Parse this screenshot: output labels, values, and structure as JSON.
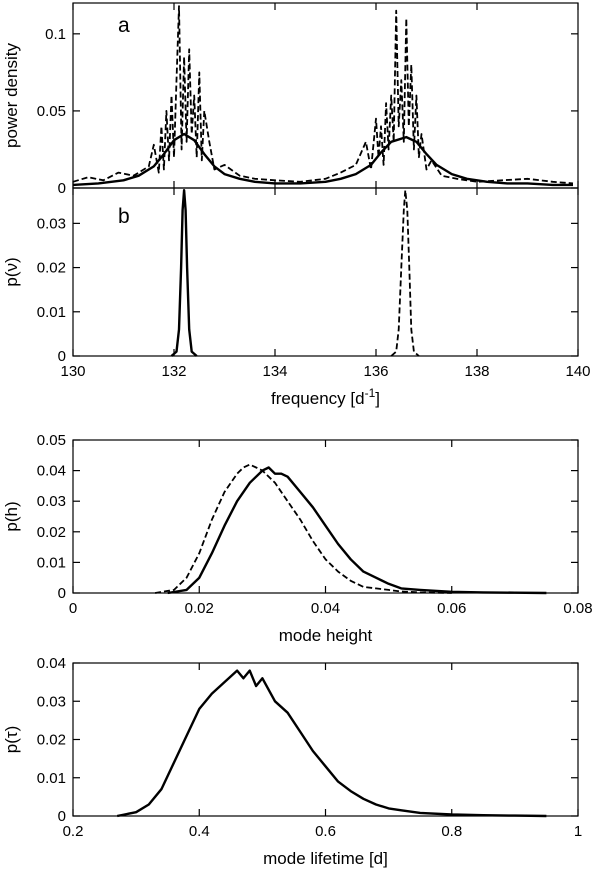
{
  "chart_data": [
    {
      "type": "line",
      "panel_label": "a",
      "xlabel": "",
      "ylabel": "power density",
      "xlim": [
        130,
        140
      ],
      "ylim": [
        0,
        0.12
      ],
      "yticks": [
        "0",
        "0.05",
        "0.1"
      ],
      "series": [
        {
          "style": "dashed",
          "x": [
            130.0,
            130.3,
            130.6,
            130.9,
            131.2,
            131.5,
            131.6,
            131.7,
            131.75,
            131.8,
            131.85,
            131.9,
            131.95,
            132.0,
            132.05,
            132.1,
            132.15,
            132.2,
            132.25,
            132.3,
            132.35,
            132.4,
            132.45,
            132.5,
            132.55,
            132.6,
            132.7,
            132.8,
            133.0,
            133.3,
            133.6,
            134.0,
            134.5,
            135.0,
            135.3,
            135.6,
            135.8,
            135.9,
            136.0,
            136.05,
            136.1,
            136.15,
            136.2,
            136.25,
            136.3,
            136.35,
            136.4,
            136.45,
            136.5,
            136.55,
            136.6,
            136.65,
            136.7,
            136.75,
            136.8,
            136.85,
            136.9,
            137.0,
            137.1,
            137.3,
            137.6,
            138.0,
            138.5,
            139.0,
            139.5,
            139.9
          ],
          "y": [
            0.004,
            0.007,
            0.005,
            0.01,
            0.008,
            0.014,
            0.028,
            0.01,
            0.04,
            0.012,
            0.05,
            0.018,
            0.06,
            0.02,
            0.07,
            0.118,
            0.025,
            0.085,
            0.03,
            0.09,
            0.035,
            0.06,
            0.02,
            0.075,
            0.018,
            0.05,
            0.03,
            0.012,
            0.015,
            0.008,
            0.006,
            0.005,
            0.004,
            0.006,
            0.01,
            0.015,
            0.03,
            0.012,
            0.045,
            0.02,
            0.04,
            0.015,
            0.055,
            0.025,
            0.06,
            0.03,
            0.115,
            0.04,
            0.07,
            0.03,
            0.11,
            0.04,
            0.08,
            0.025,
            0.06,
            0.02,
            0.035,
            0.012,
            0.018,
            0.008,
            0.006,
            0.004,
            0.005,
            0.006,
            0.004,
            0.003
          ]
        },
        {
          "style": "solid",
          "x": [
            130.0,
            130.5,
            131.0,
            131.3,
            131.6,
            131.8,
            132.0,
            132.2,
            132.4,
            132.6,
            132.8,
            133.0,
            133.3,
            133.6,
            134.0,
            134.5,
            135.0,
            135.3,
            135.6,
            135.9,
            136.1,
            136.3,
            136.6,
            136.8,
            137.0,
            137.2,
            137.5,
            137.8,
            138.2,
            138.6,
            139.0,
            139.5,
            139.9
          ],
          "y": [
            0.002,
            0.003,
            0.005,
            0.008,
            0.014,
            0.022,
            0.031,
            0.035,
            0.031,
            0.022,
            0.014,
            0.009,
            0.006,
            0.004,
            0.003,
            0.003,
            0.004,
            0.006,
            0.009,
            0.015,
            0.023,
            0.03,
            0.033,
            0.03,
            0.022,
            0.015,
            0.009,
            0.006,
            0.004,
            0.003,
            0.003,
            0.002,
            0.002
          ]
        }
      ]
    },
    {
      "type": "line",
      "panel_label": "b",
      "xlabel": "frequency [d-1]",
      "xlabel_main": "frequency [d",
      "xlabel_sup": "-1",
      "xlabel_end": "]",
      "ylabel": "p(ν)",
      "xlim": [
        130,
        140
      ],
      "ylim": [
        0,
        0.038
      ],
      "xticks": [
        "130",
        "132",
        "134",
        "136",
        "138",
        "140"
      ],
      "yticks": [
        "0",
        "0.01",
        "0.02",
        "0.03"
      ],
      "series": [
        {
          "style": "solid",
          "x": [
            131.95,
            132.05,
            132.1,
            132.14,
            132.17,
            132.2,
            132.23,
            132.26,
            132.3,
            132.35,
            132.45
          ],
          "y": [
            0,
            0.001,
            0.006,
            0.02,
            0.033,
            0.0375,
            0.033,
            0.02,
            0.006,
            0.001,
            0
          ]
        },
        {
          "style": "dashed",
          "x": [
            136.3,
            136.4,
            136.45,
            136.5,
            136.55,
            136.58,
            136.62,
            136.66,
            136.7,
            136.75,
            136.85
          ],
          "y": [
            0,
            0.001,
            0.006,
            0.02,
            0.033,
            0.0375,
            0.033,
            0.02,
            0.006,
            0.001,
            0
          ]
        }
      ]
    },
    {
      "type": "line",
      "xlabel": "mode height",
      "ylabel": "p(h)",
      "xlim": [
        0,
        0.08
      ],
      "ylim": [
        0,
        0.05
      ],
      "xticks": [
        "0",
        "0.02",
        "0.04",
        "0.06",
        "0.08"
      ],
      "yticks": [
        "0",
        "0.01",
        "0.02",
        "0.03",
        "0.04",
        "0.05"
      ],
      "series": [
        {
          "style": "solid",
          "x": [
            0.015,
            0.018,
            0.02,
            0.022,
            0.024,
            0.026,
            0.028,
            0.03,
            0.031,
            0.032,
            0.033,
            0.034,
            0.036,
            0.038,
            0.04,
            0.042,
            0.044,
            0.046,
            0.048,
            0.05,
            0.052,
            0.055,
            0.06,
            0.065,
            0.07,
            0.075
          ],
          "y": [
            0,
            0.001,
            0.005,
            0.013,
            0.022,
            0.03,
            0.036,
            0.04,
            0.041,
            0.039,
            0.039,
            0.038,
            0.033,
            0.028,
            0.022,
            0.016,
            0.011,
            0.007,
            0.005,
            0.003,
            0.0015,
            0.001,
            0.0004,
            0.0002,
            0.0001,
            0
          ]
        },
        {
          "style": "dashed",
          "x": [
            0.013,
            0.016,
            0.018,
            0.02,
            0.022,
            0.024,
            0.026,
            0.027,
            0.028,
            0.029,
            0.03,
            0.032,
            0.034,
            0.036,
            0.038,
            0.04,
            0.042,
            0.044,
            0.046,
            0.048,
            0.05,
            0.052,
            0.055,
            0.06
          ],
          "y": [
            0,
            0.001,
            0.005,
            0.013,
            0.024,
            0.033,
            0.039,
            0.041,
            0.042,
            0.041,
            0.04,
            0.036,
            0.03,
            0.024,
            0.017,
            0.011,
            0.007,
            0.004,
            0.002,
            0.0015,
            0.001,
            0.0005,
            0.0002,
            0
          ]
        }
      ]
    },
    {
      "type": "line",
      "xlabel": "mode lifetime [d]",
      "ylabel": "p(τ)",
      "xlim": [
        0.2,
        1.0
      ],
      "ylim": [
        0,
        0.04
      ],
      "xticks": [
        "0.2",
        "0.4",
        "0.6",
        "0.8",
        "1"
      ],
      "yticks": [
        "0",
        "0.01",
        "0.02",
        "0.03",
        "0.04"
      ],
      "series": [
        {
          "style": "solid",
          "x": [
            0.27,
            0.3,
            0.32,
            0.34,
            0.36,
            0.38,
            0.4,
            0.42,
            0.44,
            0.46,
            0.47,
            0.48,
            0.49,
            0.5,
            0.51,
            0.52,
            0.54,
            0.56,
            0.58,
            0.6,
            0.62,
            0.64,
            0.66,
            0.68,
            0.7,
            0.72,
            0.75,
            0.8,
            0.85,
            0.9,
            0.95
          ],
          "y": [
            0,
            0.001,
            0.003,
            0.007,
            0.014,
            0.021,
            0.028,
            0.032,
            0.035,
            0.038,
            0.036,
            0.038,
            0.034,
            0.036,
            0.033,
            0.03,
            0.027,
            0.022,
            0.017,
            0.013,
            0.009,
            0.0065,
            0.0045,
            0.003,
            0.002,
            0.0015,
            0.0008,
            0.0004,
            0.0002,
            0.0001,
            0
          ]
        }
      ]
    }
  ]
}
